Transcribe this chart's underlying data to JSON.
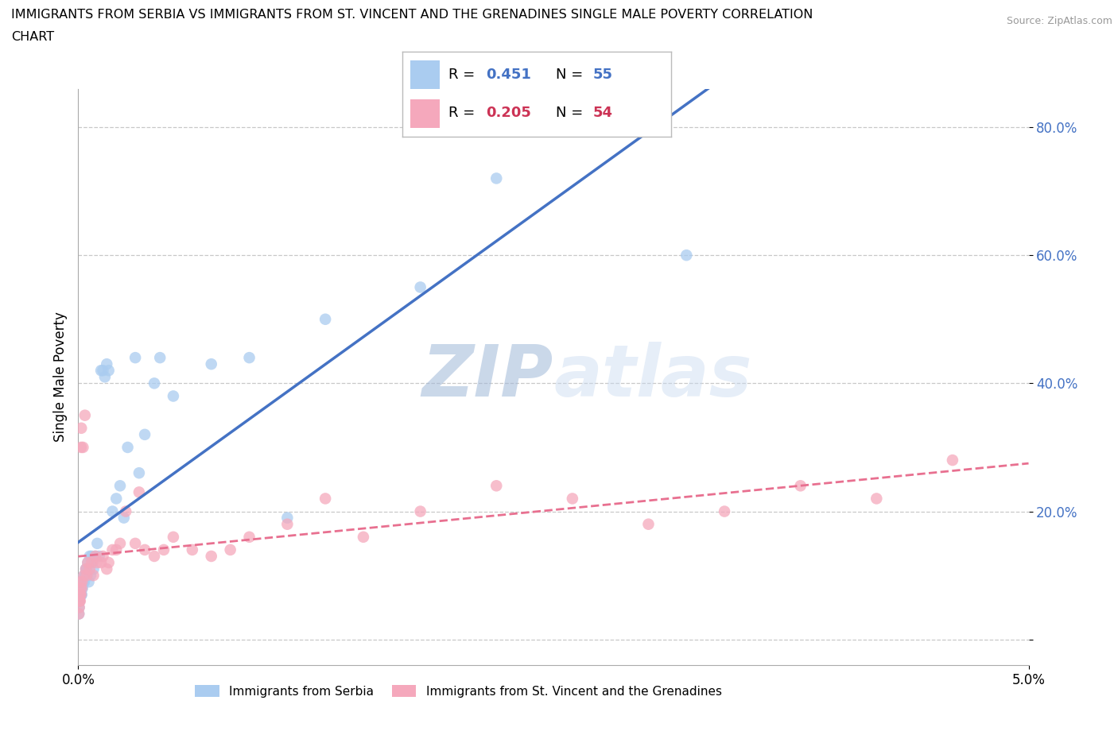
{
  "title_line1": "IMMIGRANTS FROM SERBIA VS IMMIGRANTS FROM ST. VINCENT AND THE GRENADINES SINGLE MALE POVERTY CORRELATION",
  "title_line2": "CHART",
  "source": "Source: ZipAtlas.com",
  "ylabel": "Single Male Poverty",
  "xmin": 0.0,
  "xmax": 0.05,
  "ymin": -0.04,
  "ymax": 0.86,
  "serbia_color": "#aaccf0",
  "svg_color": "#f5a8bc",
  "serbia_line_color": "#4472c4",
  "svg_line_color": "#e87090",
  "serbia_R": 0.451,
  "serbia_N": 55,
  "svg_R": 0.205,
  "svg_N": 54,
  "yticks": [
    0.0,
    0.2,
    0.4,
    0.6,
    0.8
  ],
  "ytick_labels": [
    "",
    "20.0%",
    "40.0%",
    "60.0%",
    "80.0%"
  ],
  "serbia_x": [
    3e-05,
    4e-05,
    5e-05,
    6e-05,
    7e-05,
    8e-05,
    9e-05,
    0.0001,
    0.00012,
    0.00014,
    0.00015,
    0.00016,
    0.00018,
    0.0002,
    0.00022,
    0.00025,
    0.0003,
    0.00032,
    0.00035,
    0.0004,
    0.00042,
    0.00045,
    0.0005,
    0.00055,
    0.0006,
    0.00065,
    0.0007,
    0.00075,
    0.0008,
    0.0009,
    0.001,
    0.0011,
    0.0012,
    0.0013,
    0.0014,
    0.0015,
    0.0016,
    0.0018,
    0.002,
    0.0022,
    0.0024,
    0.0026,
    0.003,
    0.0032,
    0.0035,
    0.004,
    0.0043,
    0.005,
    0.007,
    0.009,
    0.011,
    0.013,
    0.018,
    0.022,
    0.032
  ],
  "serbia_y": [
    0.04,
    0.05,
    0.06,
    0.06,
    0.07,
    0.07,
    0.08,
    0.07,
    0.08,
    0.07,
    0.07,
    0.08,
    0.07,
    0.09,
    0.08,
    0.09,
    0.1,
    0.09,
    0.1,
    0.11,
    0.11,
    0.1,
    0.12,
    0.09,
    0.13,
    0.1,
    0.13,
    0.12,
    0.11,
    0.13,
    0.15,
    0.13,
    0.42,
    0.42,
    0.41,
    0.43,
    0.42,
    0.2,
    0.22,
    0.24,
    0.19,
    0.3,
    0.44,
    0.26,
    0.32,
    0.4,
    0.44,
    0.38,
    0.43,
    0.44,
    0.19,
    0.5,
    0.55,
    0.72,
    0.6
  ],
  "svg_x": [
    3e-05,
    4e-05,
    5e-05,
    6e-05,
    7e-05,
    8e-05,
    9e-05,
    0.0001,
    0.00012,
    0.00014,
    0.00015,
    0.00016,
    0.00018,
    0.0002,
    0.00025,
    0.0003,
    0.00035,
    0.0004,
    0.00045,
    0.0005,
    0.0006,
    0.0007,
    0.0008,
    0.0009,
    0.001,
    0.0012,
    0.0013,
    0.0015,
    0.0016,
    0.0018,
    0.002,
    0.0022,
    0.0025,
    0.003,
    0.0032,
    0.0035,
    0.004,
    0.0045,
    0.005,
    0.006,
    0.007,
    0.008,
    0.009,
    0.011,
    0.013,
    0.015,
    0.018,
    0.022,
    0.026,
    0.03,
    0.034,
    0.038,
    0.042,
    0.046
  ],
  "svg_y": [
    0.04,
    0.06,
    0.05,
    0.07,
    0.06,
    0.08,
    0.07,
    0.06,
    0.09,
    0.07,
    0.3,
    0.33,
    0.08,
    0.09,
    0.3,
    0.1,
    0.35,
    0.11,
    0.1,
    0.12,
    0.11,
    0.12,
    0.1,
    0.13,
    0.12,
    0.12,
    0.13,
    0.11,
    0.12,
    0.14,
    0.14,
    0.15,
    0.2,
    0.15,
    0.23,
    0.14,
    0.13,
    0.14,
    0.16,
    0.14,
    0.13,
    0.14,
    0.16,
    0.18,
    0.22,
    0.16,
    0.2,
    0.24,
    0.22,
    0.18,
    0.2,
    0.24,
    0.22,
    0.28
  ]
}
